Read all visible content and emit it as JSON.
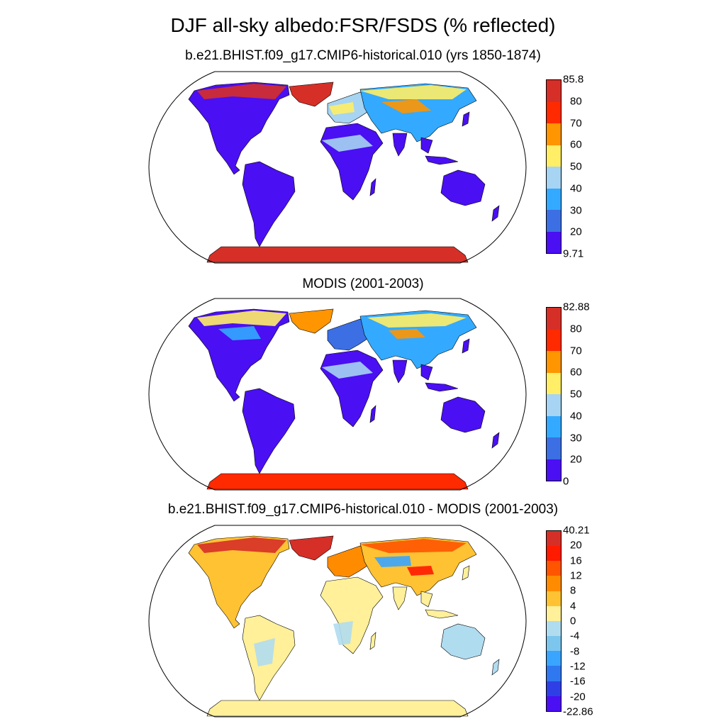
{
  "title": "DJF all-sky albedo:FSR/FSDS (% reflected)",
  "panels": [
    {
      "title": "b.e21.BHIST.f09_g17.CMIP6-historical.010 (yrs 1850-1874)",
      "colorbar": {
        "labels": [
          "85.8",
          "80",
          "70",
          "60",
          "50",
          "40",
          "30",
          "20",
          "9.71"
        ],
        "colors": [
          "#d62f27",
          "#ff2a00",
          "#ff9500",
          "#ffee66",
          "#a6d4f2",
          "#33aaff",
          "#3c6fe3",
          "#4a0ff2"
        ]
      }
    },
    {
      "title": "MODIS (2001-2003)",
      "colorbar": {
        "labels": [
          "82.88",
          "80",
          "70",
          "60",
          "50",
          "40",
          "30",
          "20",
          "0"
        ],
        "colors": [
          "#d62f27",
          "#ff2a00",
          "#ff9500",
          "#ffee66",
          "#a6d4f2",
          "#33aaff",
          "#3c6fe3",
          "#4a0ff2"
        ]
      }
    },
    {
      "title": "b.e21.BHIST.f09_g17.CMIP6-historical.010 - MODIS (2001-2003)",
      "colorbar": {
        "labels": [
          "40.21",
          "20",
          "16",
          "12",
          "8",
          "4",
          "0",
          "-4",
          "-8",
          "-12",
          "-16",
          "-20",
          "-22.86"
        ],
        "colors": [
          "#d62f27",
          "#ff1a00",
          "#ff5500",
          "#ff8c00",
          "#ffc233",
          "#fff099",
          "#b0dcf0",
          "#7cc6ee",
          "#3aa5ff",
          "#2f78f0",
          "#2f3fe6",
          "#4a0ff2"
        ]
      }
    }
  ]
}
